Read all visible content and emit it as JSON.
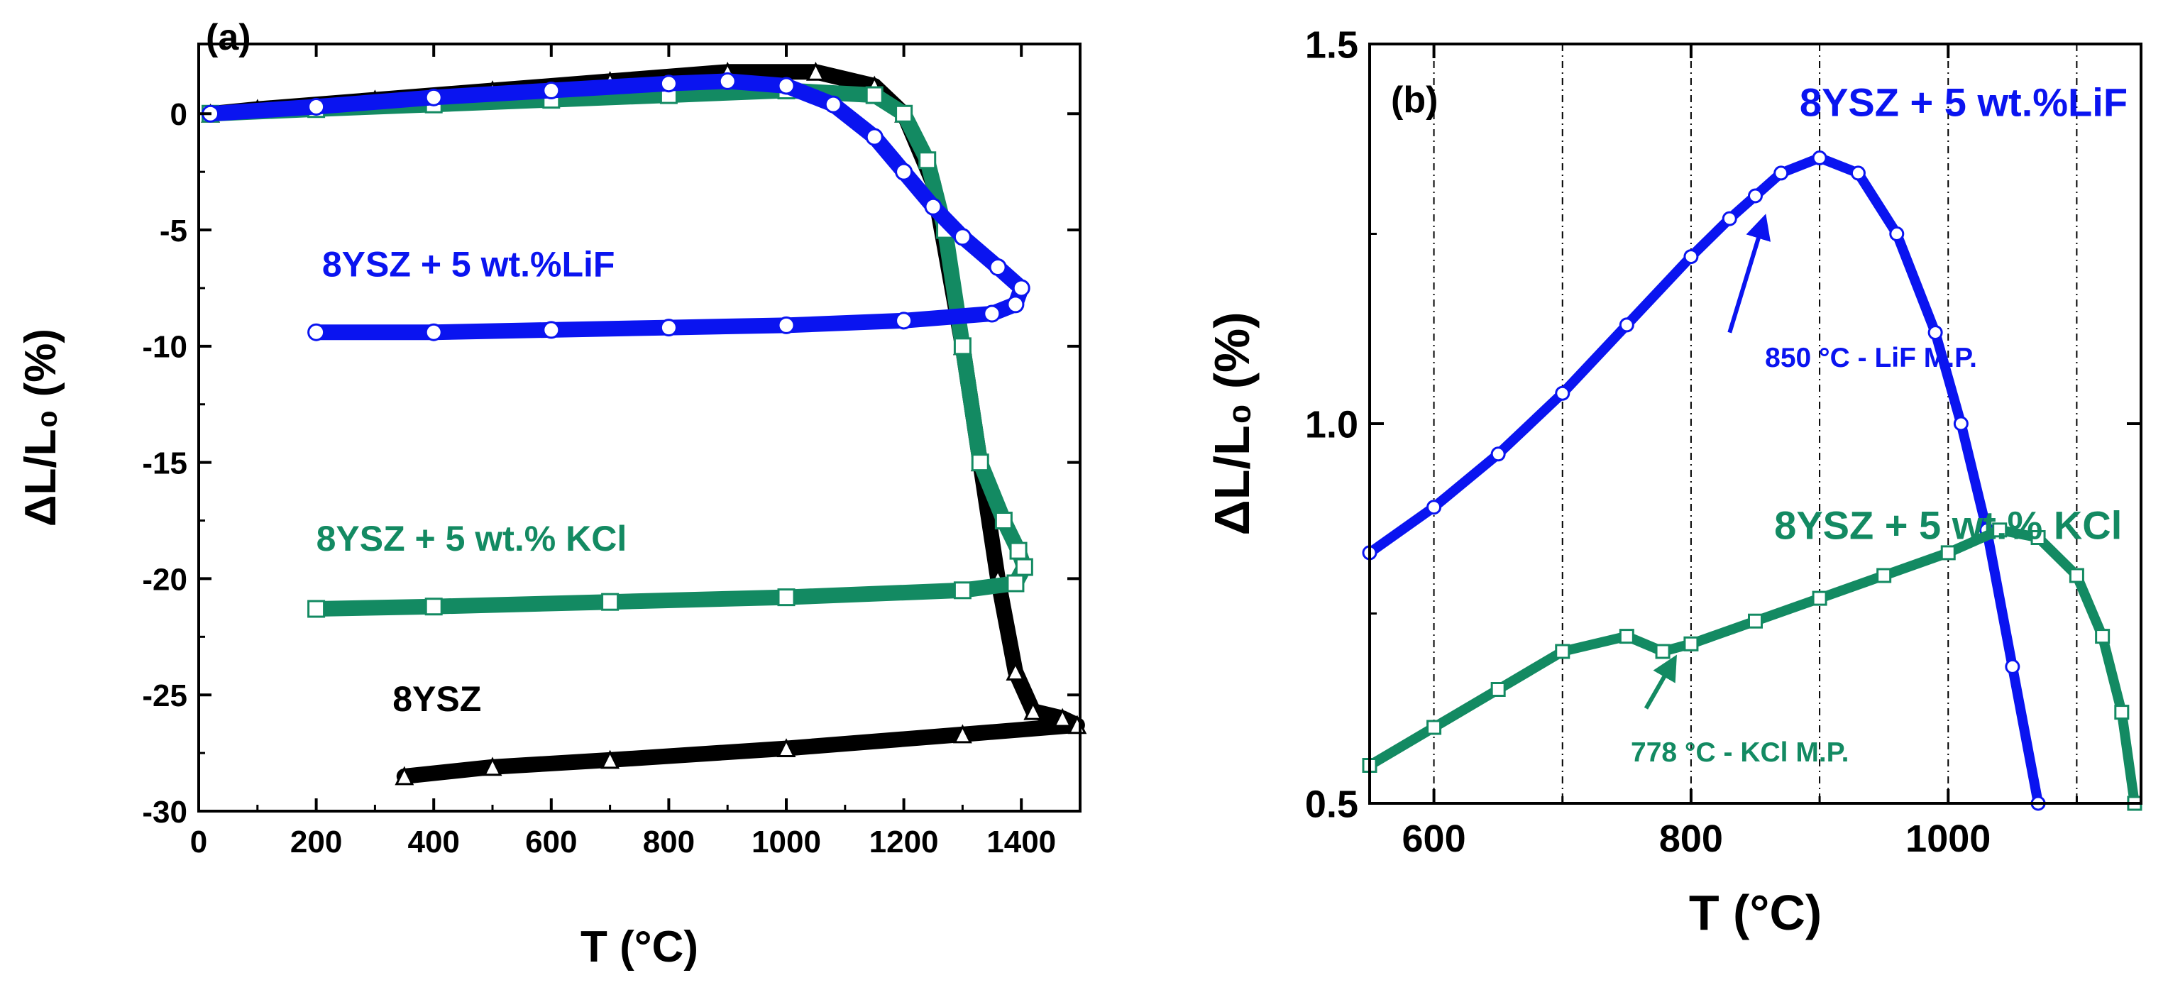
{
  "colors": {
    "lif": "#0a14f0",
    "kcl": "#138a62",
    "ysz": "#000000"
  },
  "chart_data": [
    {
      "type": "line",
      "panel_label": "(a)",
      "xlabel": "T (°C)",
      "ylabel": "ΔL/L₀ (%)",
      "xlim": [
        0,
        1500
      ],
      "ylim": [
        -30,
        3
      ],
      "xticks": [
        0,
        200,
        400,
        600,
        800,
        1000,
        1200,
        1400
      ],
      "yticks": [
        0,
        -5,
        -10,
        -15,
        -20,
        -25,
        -30
      ],
      "series": [
        {
          "name": "8YSZ",
          "color": "#000000",
          "marker": "triangle",
          "points": [
            [
              20,
              0
            ],
            [
              100,
              0.2
            ],
            [
              300,
              0.6
            ],
            [
              500,
              1.0
            ],
            [
              700,
              1.4
            ],
            [
              900,
              1.8
            ],
            [
              1050,
              1.8
            ],
            [
              1150,
              1.2
            ],
            [
              1200,
              0
            ],
            [
              1250,
              -3
            ],
            [
              1300,
              -10
            ],
            [
              1330,
              -15
            ],
            [
              1360,
              -20
            ],
            [
              1390,
              -24
            ],
            [
              1420,
              -25.7
            ],
            [
              1470,
              -26
            ],
            [
              1495,
              -26.3
            ],
            [
              1300,
              -26.7
            ],
            [
              1000,
              -27.3
            ],
            [
              700,
              -27.8
            ],
            [
              500,
              -28.1
            ],
            [
              350,
              -28.5
            ]
          ]
        },
        {
          "name": "8YSZ + 5 wt.% KCl",
          "color": "#138a62",
          "marker": "square",
          "points": [
            [
              20,
              0
            ],
            [
              200,
              0.2
            ],
            [
              400,
              0.4
            ],
            [
              600,
              0.6
            ],
            [
              800,
              0.8
            ],
            [
              1000,
              1.0
            ],
            [
              1150,
              0.8
            ],
            [
              1200,
              0
            ],
            [
              1240,
              -2
            ],
            [
              1270,
              -5
            ],
            [
              1300,
              -10
            ],
            [
              1330,
              -15
            ],
            [
              1370,
              -17.5
            ],
            [
              1395,
              -18.8
            ],
            [
              1405,
              -19.5
            ],
            [
              1390,
              -20.2
            ],
            [
              1300,
              -20.5
            ],
            [
              1000,
              -20.8
            ],
            [
              700,
              -21.0
            ],
            [
              400,
              -21.2
            ],
            [
              200,
              -21.3
            ]
          ]
        },
        {
          "name": "8YSZ + 5 wt.%LiF",
          "color": "#0a14f0",
          "marker": "circle",
          "points": [
            [
              20,
              0
            ],
            [
              200,
              0.3
            ],
            [
              400,
              0.7
            ],
            [
              600,
              1.0
            ],
            [
              800,
              1.3
            ],
            [
              900,
              1.4
            ],
            [
              1000,
              1.2
            ],
            [
              1080,
              0.4
            ],
            [
              1150,
              -1
            ],
            [
              1200,
              -2.5
            ],
            [
              1250,
              -4
            ],
            [
              1300,
              -5.3
            ],
            [
              1360,
              -6.6
            ],
            [
              1400,
              -7.5
            ],
            [
              1390,
              -8.2
            ],
            [
              1350,
              -8.6
            ],
            [
              1200,
              -8.9
            ],
            [
              1000,
              -9.1
            ],
            [
              800,
              -9.2
            ],
            [
              600,
              -9.3
            ],
            [
              400,
              -9.4
            ],
            [
              200,
              -9.4
            ]
          ]
        }
      ],
      "annotations": [
        {
          "text": "8YSZ + 5 wt.%LiF",
          "series": "8YSZ + 5 wt.%LiF",
          "x": 210,
          "y": -7.0
        },
        {
          "text": "8YSZ + 5 wt.% KCl",
          "series": "8YSZ + 5 wt.% KCl",
          "x": 200,
          "y": -18.8
        },
        {
          "text": "8YSZ",
          "series": "8YSZ",
          "x": 330,
          "y": -25.7
        }
      ]
    },
    {
      "type": "line",
      "panel_label": "(b)",
      "xlabel": "T (°C)",
      "ylabel": "ΔL/L₀ (%)",
      "xlim": [
        550,
        1150
      ],
      "ylim": [
        0.5,
        1.5
      ],
      "xticks": [
        600,
        800,
        1000
      ],
      "yticks": [
        0.5,
        1.0,
        1.5
      ],
      "ytick_labels": [
        "0.5",
        "1.0",
        "1.5"
      ],
      "vgrid": [
        600,
        700,
        800,
        900,
        1000,
        1100
      ],
      "grid": true,
      "series": [
        {
          "name": "8YSZ + 5 wt.%LiF",
          "color": "#0a14f0",
          "marker": "circle",
          "points": [
            [
              550,
              0.83
            ],
            [
              600,
              0.89
            ],
            [
              650,
              0.96
            ],
            [
              700,
              1.04
            ],
            [
              750,
              1.13
            ],
            [
              800,
              1.22
            ],
            [
              830,
              1.27
            ],
            [
              850,
              1.3
            ],
            [
              870,
              1.33
            ],
            [
              900,
              1.35
            ],
            [
              930,
              1.33
            ],
            [
              960,
              1.25
            ],
            [
              990,
              1.12
            ],
            [
              1010,
              1.0
            ],
            [
              1030,
              0.86
            ],
            [
              1050,
              0.68
            ],
            [
              1070,
              0.5
            ]
          ]
        },
        {
          "name": "8YSZ + 5 wt.% KCl",
          "color": "#138a62",
          "marker": "square",
          "points": [
            [
              550,
              0.55
            ],
            [
              600,
              0.6
            ],
            [
              650,
              0.65
            ],
            [
              700,
              0.7
            ],
            [
              750,
              0.72
            ],
            [
              778,
              0.7
            ],
            [
              800,
              0.71
            ],
            [
              850,
              0.74
            ],
            [
              900,
              0.77
            ],
            [
              950,
              0.8
            ],
            [
              1000,
              0.83
            ],
            [
              1040,
              0.86
            ],
            [
              1070,
              0.85
            ],
            [
              1100,
              0.8
            ],
            [
              1120,
              0.72
            ],
            [
              1135,
              0.62
            ],
            [
              1145,
              0.5
            ]
          ]
        }
      ],
      "annotations": [
        {
          "text": "8YSZ + 5 wt.%LiF",
          "series": "8YSZ + 5 wt.%LiF",
          "x": 1012,
          "y": 1.405
        },
        {
          "text": "8YSZ + 5 wt.% KCl",
          "series": "8YSZ + 5 wt.% KCl",
          "x": 1000,
          "y": 0.848
        },
        {
          "text": "850 °C - LiF M.P.",
          "series": "8YSZ + 5 wt.%LiF",
          "x": 940,
          "y": 1.075,
          "arrow_from": [
            830,
            1.12
          ],
          "arrow_to": [
            857,
            1.27
          ]
        },
        {
          "text": "778 °C - KCl M.P.",
          "series": "8YSZ + 5 wt.% KCl",
          "x": 838,
          "y": 0.555,
          "arrow_from": [
            765,
            0.625
          ],
          "arrow_to": [
            787,
            0.69
          ]
        }
      ]
    }
  ]
}
